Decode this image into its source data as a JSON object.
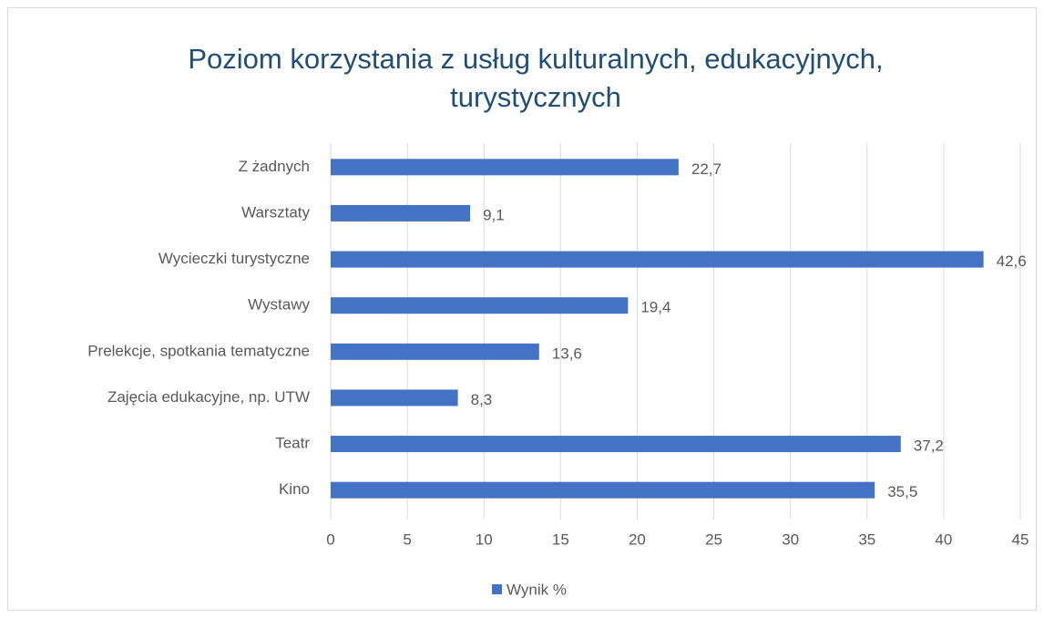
{
  "chart_data": {
    "type": "bar",
    "orientation": "horizontal",
    "title": "Poziom korzystania z usług kulturalnych, edukacyjnych, turystycznych",
    "categories": [
      "Z żadnych",
      "Warsztaty",
      "Wycieczki turystyczne",
      "Wystawy",
      "Prelekcje, spotkania tematyczne",
      "Zajęcia edukacyjne, np. UTW",
      "Teatr",
      "Kino"
    ],
    "series": [
      {
        "name": "Wynik %",
        "color": "#4472c4",
        "values": [
          22.7,
          9.1,
          42.6,
          19.4,
          13.6,
          8.3,
          37.2,
          35.5
        ],
        "value_labels": [
          "22,7",
          "9,1",
          "42,6",
          "19,4",
          "13,6",
          "8,3",
          "37,2",
          "35,5"
        ]
      }
    ],
    "xlim": [
      0,
      45
    ],
    "xticks": [
      0,
      5,
      10,
      15,
      20,
      25,
      30,
      35,
      40,
      45
    ],
    "grid": true,
    "legend": "bottom"
  }
}
